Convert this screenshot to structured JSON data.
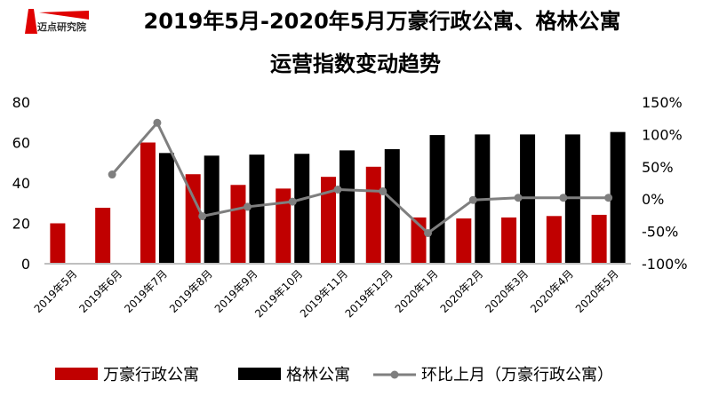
{
  "logo": {
    "text": "迈点研究院"
  },
  "chart_data": {
    "type": "bar",
    "title": "2019年5月-2020年5月万豪行政公寓、格林公寓",
    "subtitle": "运营指数变动趋势",
    "categories": [
      "2019年5月",
      "2019年6月",
      "2019年7月",
      "2019年8月",
      "2019年9月",
      "2019年10月",
      "2019年11月",
      "2019年12月",
      "2020年1月",
      "2020年2月",
      "2020年3月",
      "2020年4月",
      "2020年5月"
    ],
    "series": [
      {
        "name": "万豪行政公寓",
        "type": "bar",
        "axis": "left",
        "color": "#c00000",
        "values": [
          20,
          27.7,
          60,
          44.3,
          39,
          37.2,
          43,
          48,
          22.9,
          22.4,
          22.9,
          23.6,
          24.2
        ]
      },
      {
        "name": "格林公寓",
        "type": "bar",
        "axis": "left",
        "color": "#000000",
        "values": [
          null,
          null,
          54.8,
          53.5,
          54,
          54.4,
          56.1,
          56.7,
          63.7,
          64,
          64,
          64,
          65.2
        ]
      },
      {
        "name": "环比上月（万豪行政公寓）",
        "type": "line",
        "axis": "right",
        "color": "#7f7f7f",
        "values": [
          null,
          38,
          118,
          -26.5,
          -12,
          -4,
          14.7,
          12,
          -52.6,
          -1.4,
          2,
          2,
          2
        ]
      }
    ],
    "yleft": {
      "ylim": [
        0,
        80
      ],
      "ticks": [
        "0",
        "20",
        "40",
        "60",
        "80"
      ]
    },
    "yright": {
      "ylim": [
        -100,
        150
      ],
      "ticks": [
        "-100%",
        "-50%",
        "0%",
        "50%",
        "100%",
        "150%"
      ]
    },
    "grid": false,
    "legend": "bottom"
  }
}
